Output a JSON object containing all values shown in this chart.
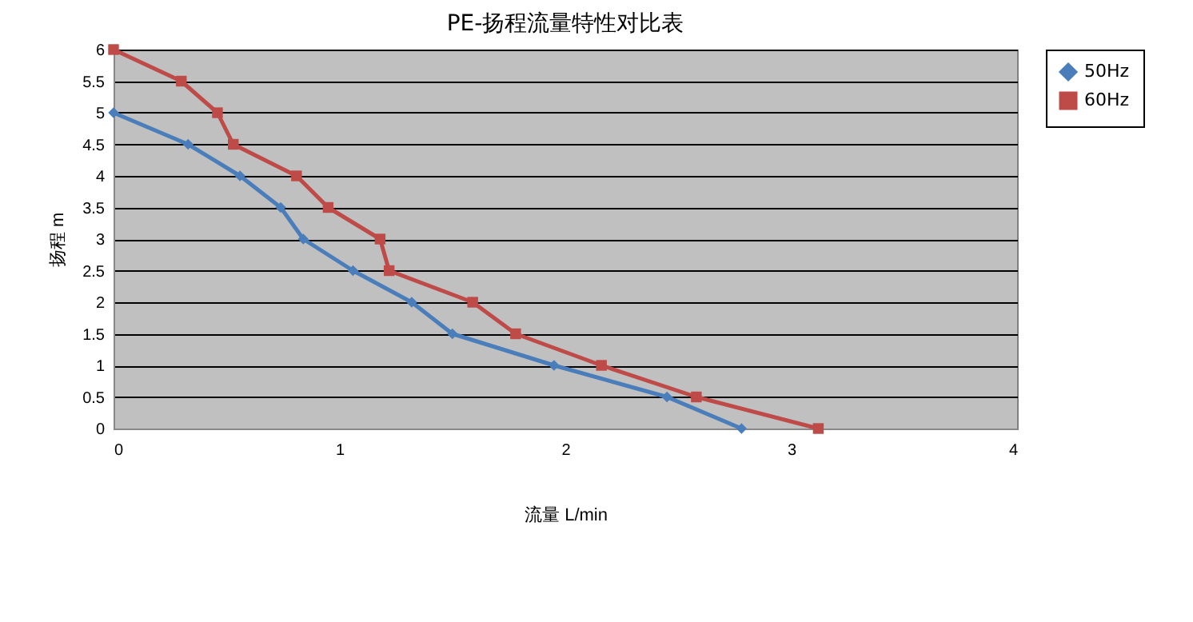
{
  "chart_data": {
    "type": "line",
    "title": "PE-扬程流量特性对比表",
    "xlabel": "流量  L/min",
    "ylabel": "扬程 m",
    "xlim": [
      0,
      4
    ],
    "xticks": [
      0,
      1,
      2,
      3,
      4
    ],
    "ylim": [
      0,
      6
    ],
    "yticks": [
      0,
      0.5,
      1,
      1.5,
      2,
      2.5,
      3,
      3.5,
      4,
      4.5,
      5,
      5.5,
      6
    ],
    "grid": "y",
    "legend": "right",
    "line_style": "solid",
    "series": [
      {
        "name": "50Hz",
        "color": "#4a7ebb",
        "marker": "diamond",
        "x": [
          0,
          0.33,
          0.56,
          0.74,
          0.84,
          1.06,
          1.32,
          1.5,
          1.95,
          2.45,
          2.78
        ],
        "values": [
          5,
          4.5,
          4,
          3.5,
          3,
          2.5,
          2,
          1.5,
          1,
          0.5,
          0
        ]
      },
      {
        "name": "60Hz",
        "color": "#be4b48",
        "marker": "square",
        "x": [
          0,
          0.3,
          0.46,
          0.53,
          0.81,
          0.95,
          1.18,
          1.22,
          1.59,
          1.78,
          2.16,
          2.58,
          3.12
        ],
        "values": [
          6,
          5.5,
          5,
          4.5,
          4,
          3.5,
          3,
          2.5,
          2,
          1.5,
          1,
          0.5,
          0
        ]
      }
    ]
  }
}
